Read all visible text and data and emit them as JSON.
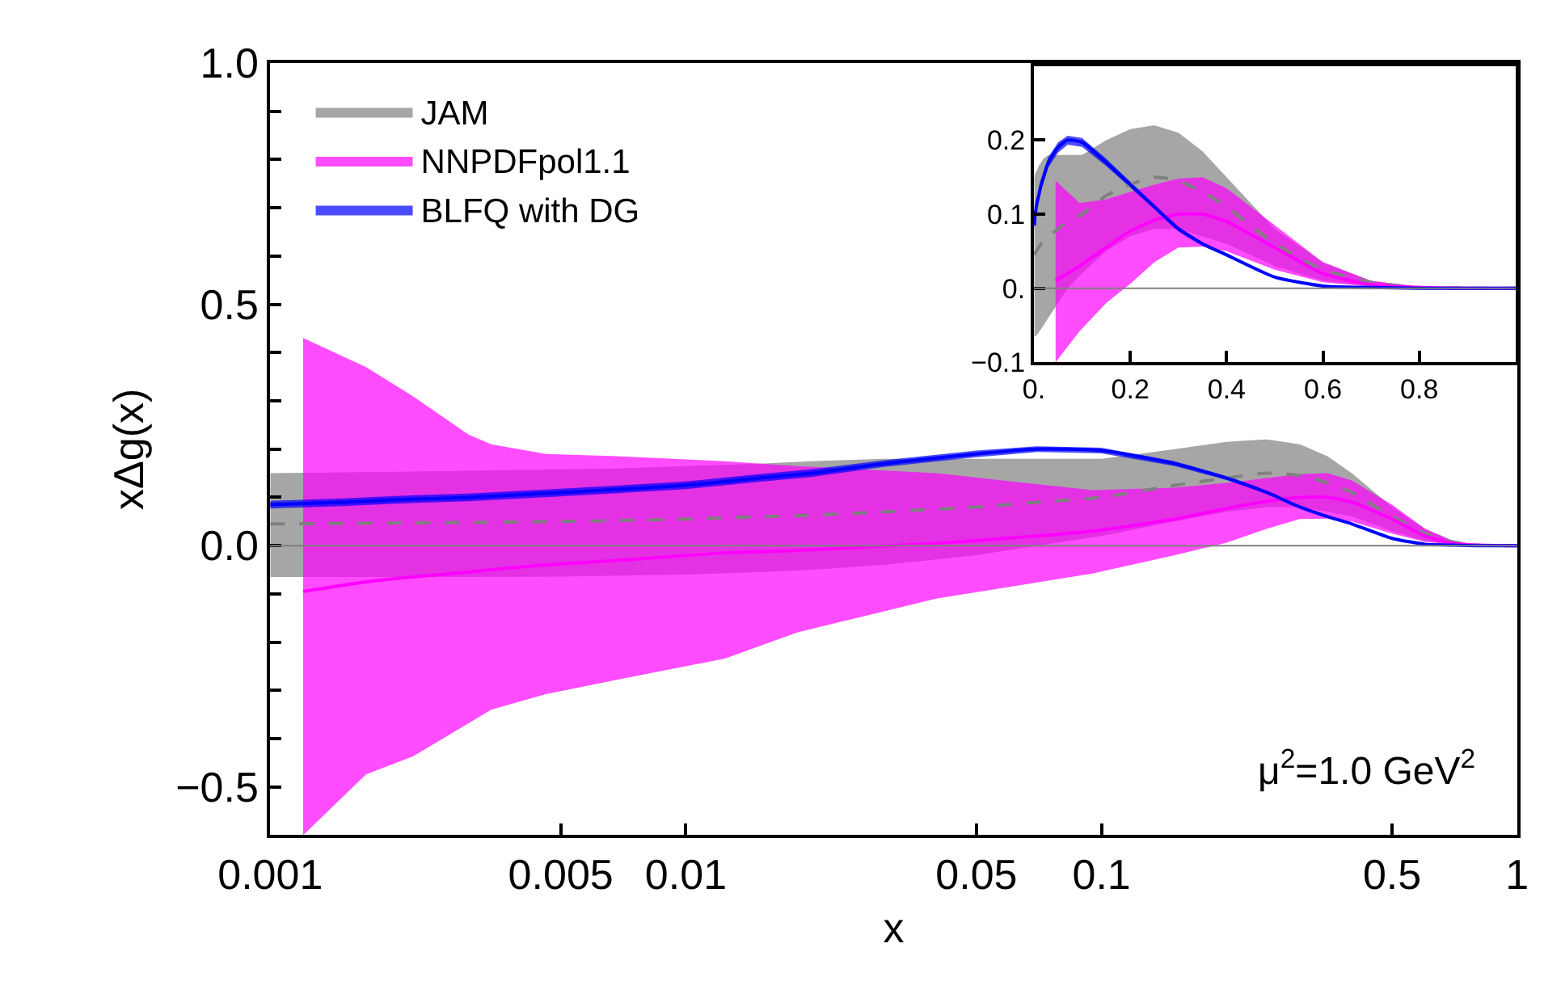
{
  "chart_data": [
    {
      "type": "line",
      "xlabel": "x",
      "ylabel": "xΔg(x)",
      "log": "x",
      "legend": "top left",
      "xlim": [
        0.001,
        1
      ],
      "ylim": [
        -0.6,
        1.0
      ],
      "xticks": [
        {
          "value": 0.001,
          "label": "0.001"
        },
        {
          "value": 0.005,
          "label": "0.005"
        },
        {
          "value": 0.01,
          "label": "0.01"
        },
        {
          "value": 0.05,
          "label": "0.05"
        },
        {
          "value": 0.1,
          "label": "0.1"
        },
        {
          "value": 0.5,
          "label": "0.5"
        },
        {
          "value": 1,
          "label": "1"
        }
      ],
      "yticks": [
        {
          "value": -0.5,
          "label": "−0.5"
        },
        {
          "value": -0.4,
          "label": null
        },
        {
          "value": -0.3,
          "label": null
        },
        {
          "value": -0.2,
          "label": null
        },
        {
          "value": -0.1,
          "label": null
        },
        {
          "value": 0,
          "label": "0.0"
        },
        {
          "value": 0.1,
          "label": null
        },
        {
          "value": 0.2,
          "label": null
        },
        {
          "value": 0.3,
          "label": null
        },
        {
          "value": 0.4,
          "label": null
        },
        {
          "value": 0.5,
          "label": "0.5"
        },
        {
          "value": 0.6,
          "label": null
        },
        {
          "value": 0.7,
          "label": null
        },
        {
          "value": 0.8,
          "label": null
        },
        {
          "value": 0.9,
          "label": null
        },
        {
          "value": 1.0,
          "label": "1.0"
        }
      ],
      "ref_lines": [
        {
          "axis": "y",
          "value": 0,
          "color": "#808080"
        }
      ],
      "annotations": [
        "μ$^{2}$=1.0 GeV$^{2}$"
      ],
      "series": [
        {
          "name": "JAM",
          "color": "#808080",
          "line_style": "dashed",
          "x": [
            0.001,
            0.0015,
            0.002,
            0.003,
            0.005,
            0.007,
            0.01,
            0.015,
            0.02,
            0.03,
            0.05,
            0.07,
            0.1,
            0.15,
            0.2,
            0.25,
            0.3,
            0.35,
            0.4,
            0.5,
            0.6,
            0.7,
            0.8,
            1.0
          ],
          "values": [
            0.045,
            0.046,
            0.047,
            0.048,
            0.05,
            0.052,
            0.055,
            0.06,
            0.063,
            0.07,
            0.08,
            0.09,
            0.1,
            0.125,
            0.14,
            0.15,
            0.145,
            0.13,
            0.11,
            0.06,
            0.025,
            0.008,
            0.001,
            0
          ],
          "upper": [
            0.15,
            0.152,
            0.153,
            0.155,
            0.158,
            0.16,
            0.165,
            0.17,
            0.175,
            0.18,
            0.18,
            0.18,
            0.18,
            0.2,
            0.215,
            0.22,
            0.21,
            0.185,
            0.15,
            0.08,
            0.035,
            0.01,
            0.002,
            0
          ],
          "lower": [
            -0.065,
            -0.065,
            -0.065,
            -0.065,
            -0.064,
            -0.062,
            -0.06,
            -0.055,
            -0.05,
            -0.04,
            -0.02,
            0,
            0.02,
            0.05,
            0.07,
            0.08,
            0.08,
            0.07,
            0.06,
            0.03,
            0.01,
            0.003,
            0,
            0
          ]
        },
        {
          "name": "NNPDFpol1.1",
          "color": "#ff00ff",
          "line_style": "solid",
          "x": [
            0.0012,
            0.0017,
            0.0022,
            0.003,
            0.0034,
            0.0046,
            0.007,
            0.0124,
            0.0185,
            0.04,
            0.095,
            0.15,
            0.2,
            0.25,
            0.3,
            0.35,
            0.4,
            0.5,
            0.6,
            0.7,
            0.8,
            1.0
          ],
          "values": [
            -0.095,
            -0.075,
            -0.065,
            -0.055,
            -0.05,
            -0.04,
            -0.03,
            -0.015,
            -0.01,
            0.005,
            0.03,
            0.055,
            0.077,
            0.092,
            0.1,
            0.1,
            0.09,
            0.055,
            0.02,
            0.005,
            0.001,
            0
          ],
          "upper": [
            0.43,
            0.37,
            0.31,
            0.23,
            0.21,
            0.19,
            0.185,
            0.175,
            0.165,
            0.15,
            0.115,
            0.12,
            0.13,
            0.14,
            0.148,
            0.15,
            0.135,
            0.085,
            0.035,
            0.01,
            0.002,
            0
          ],
          "lower": [
            -0.6,
            -0.474,
            -0.437,
            -0.368,
            -0.34,
            -0.308,
            -0.276,
            -0.234,
            -0.18,
            -0.11,
            -0.058,
            -0.02,
            0.006,
            0.035,
            0.055,
            0.056,
            0.05,
            0.025,
            0.008,
            0.002,
            0,
            0
          ]
        },
        {
          "name": "BLFQ with DG",
          "color": "#0000ff",
          "line_style": "solid",
          "x": [
            0.001,
            0.0015,
            0.002,
            0.003,
            0.005,
            0.007,
            0.01,
            0.015,
            0.02,
            0.03,
            0.05,
            0.07,
            0.1,
            0.15,
            0.2,
            0.25,
            0.3,
            0.35,
            0.4,
            0.5,
            0.6,
            0.7,
            0.8,
            1.0
          ],
          "values": [
            0.085,
            0.09,
            0.095,
            0.1,
            0.11,
            0.117,
            0.125,
            0.14,
            0.15,
            0.17,
            0.19,
            0.2,
            0.197,
            0.17,
            0.14,
            0.11,
            0.08,
            0.06,
            0.045,
            0.015,
            0.003,
            0.001,
            0,
            0
          ],
          "upper": [
            0.093,
            0.098,
            0.103,
            0.108,
            0.118,
            0.125,
            0.133,
            0.148,
            0.158,
            0.177,
            0.197,
            0.206,
            0.203,
            0.175,
            0.144,
            0.113,
            0.083,
            0.062,
            0.047,
            0.016,
            0.004,
            0.001,
            0,
            0
          ],
          "lower": [
            0.077,
            0.082,
            0.087,
            0.092,
            0.102,
            0.109,
            0.117,
            0.132,
            0.142,
            0.163,
            0.183,
            0.194,
            0.191,
            0.165,
            0.136,
            0.107,
            0.077,
            0.058,
            0.043,
            0.014,
            0.002,
            0,
            0,
            0
          ]
        }
      ]
    },
    {
      "type": "line",
      "xlim": [
        0,
        1
      ],
      "ylim": [
        -0.1,
        0.3
      ],
      "xticks": [
        {
          "value": 0,
          "label": "0."
        },
        0.2,
        0.4,
        0.6,
        0.8
      ],
      "yticks": [
        {
          "value": -0.1,
          "label": "−0.1"
        },
        {
          "value": 0,
          "label": "0."
        },
        0.1,
        0.2
      ],
      "ref_lines": [
        {
          "axis": "y",
          "value": 0,
          "color": "#808080"
        }
      ],
      "series": [
        {
          "color": "#808080",
          "line_style": "dashed",
          "x": [
            0.001,
            0.0015,
            0.002,
            0.003,
            0.005,
            0.007,
            0.01,
            0.015,
            0.02,
            0.03,
            0.05,
            0.07,
            0.1,
            0.15,
            0.2,
            0.25,
            0.3,
            0.35,
            0.4,
            0.5,
            0.6,
            0.7,
            0.8,
            1.0
          ],
          "values": [
            0.045,
            0.046,
            0.047,
            0.048,
            0.05,
            0.052,
            0.055,
            0.06,
            0.063,
            0.07,
            0.08,
            0.09,
            0.1,
            0.125,
            0.14,
            0.15,
            0.145,
            0.13,
            0.11,
            0.06,
            0.025,
            0.008,
            0.001,
            0
          ],
          "upper": [
            0.15,
            0.152,
            0.153,
            0.155,
            0.158,
            0.16,
            0.165,
            0.17,
            0.175,
            0.18,
            0.18,
            0.18,
            0.18,
            0.2,
            0.215,
            0.22,
            0.21,
            0.185,
            0.15,
            0.08,
            0.035,
            0.01,
            0.002,
            0
          ],
          "lower": [
            -0.065,
            -0.065,
            -0.065,
            -0.065,
            -0.064,
            -0.062,
            -0.06,
            -0.055,
            -0.05,
            -0.04,
            -0.02,
            0,
            0.02,
            0.05,
            0.07,
            0.08,
            0.08,
            0.07,
            0.06,
            0.03,
            0.01,
            0.003,
            0,
            0
          ]
        },
        {
          "color": "#ff00ff",
          "line_style": "solid",
          "x": [
            0.045,
            0.095,
            0.15,
            0.2,
            0.25,
            0.3,
            0.35,
            0.4,
            0.5,
            0.6,
            0.7,
            0.8,
            1.0
          ],
          "values": [
            0.01,
            0.03,
            0.055,
            0.077,
            0.092,
            0.1,
            0.1,
            0.09,
            0.055,
            0.02,
            0.005,
            0.001,
            0
          ],
          "upper": [
            0.145,
            0.115,
            0.12,
            0.13,
            0.14,
            0.148,
            0.15,
            0.135,
            0.085,
            0.035,
            0.01,
            0.002,
            0
          ],
          "lower": [
            -0.1,
            -0.058,
            -0.02,
            0.006,
            0.035,
            0.055,
            0.056,
            0.05,
            0.025,
            0.008,
            0.002,
            0,
            0
          ]
        },
        {
          "color": "#0000ff",
          "line_style": "solid",
          "x": [
            0.001,
            0.0015,
            0.002,
            0.003,
            0.005,
            0.007,
            0.01,
            0.015,
            0.02,
            0.03,
            0.05,
            0.07,
            0.1,
            0.15,
            0.2,
            0.25,
            0.3,
            0.35,
            0.4,
            0.5,
            0.6,
            0.7,
            0.8,
            1.0
          ],
          "values": [
            0.085,
            0.09,
            0.095,
            0.1,
            0.11,
            0.117,
            0.125,
            0.14,
            0.15,
            0.17,
            0.19,
            0.2,
            0.197,
            0.17,
            0.14,
            0.11,
            0.08,
            0.06,
            0.045,
            0.015,
            0.003,
            0.001,
            0,
            0
          ],
          "upper": [
            0.093,
            0.098,
            0.103,
            0.108,
            0.118,
            0.125,
            0.133,
            0.148,
            0.158,
            0.177,
            0.197,
            0.206,
            0.203,
            0.175,
            0.144,
            0.113,
            0.083,
            0.062,
            0.047,
            0.016,
            0.004,
            0.001,
            0,
            0
          ],
          "lower": [
            0.077,
            0.082,
            0.087,
            0.092,
            0.102,
            0.109,
            0.117,
            0.132,
            0.142,
            0.163,
            0.183,
            0.194,
            0.191,
            0.165,
            0.136,
            0.107,
            0.077,
            0.058,
            0.043,
            0.014,
            0.002,
            0,
            0,
            0
          ]
        }
      ]
    }
  ]
}
